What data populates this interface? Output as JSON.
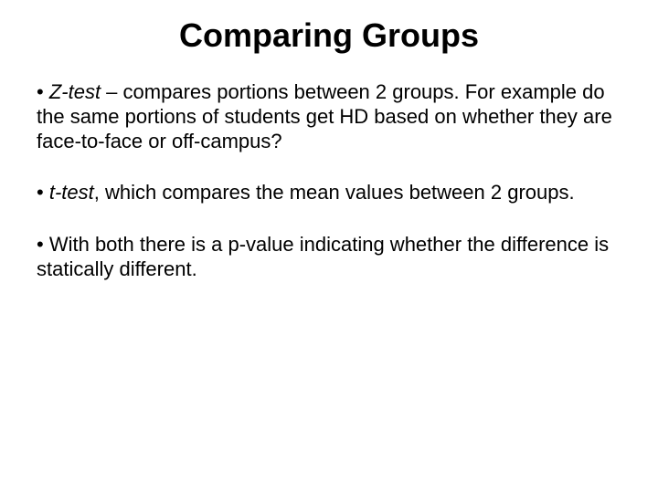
{
  "slide": {
    "title": "Comparing Groups",
    "title_fontsize": 36,
    "body_fontsize": 22,
    "bullet_char": "•",
    "text_color": "#000000",
    "background_color": "#ffffff",
    "blocks": [
      {
        "term": "Z-test",
        "sep": " – ",
        "rest": "compares portions between 2 groups. For example do the same portions of students get HD based on whether they are face-to-face or off-campus?"
      },
      {
        "term": "t-test",
        "sep": ", ",
        "rest": "which compares the mean values between 2 groups."
      },
      {
        "term": "",
        "sep": "",
        "rest": "With both there is a p-value indicating whether the difference is statically different."
      }
    ]
  }
}
